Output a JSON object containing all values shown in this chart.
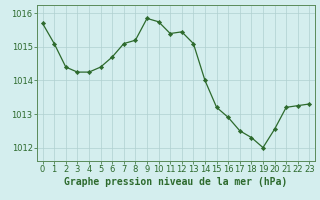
{
  "x": [
    0,
    1,
    2,
    3,
    4,
    5,
    6,
    7,
    8,
    9,
    10,
    11,
    12,
    13,
    14,
    15,
    16,
    17,
    18,
    19,
    20,
    21,
    22,
    23
  ],
  "y": [
    1015.7,
    1015.1,
    1014.4,
    1014.25,
    1014.25,
    1014.4,
    1014.7,
    1015.1,
    1015.2,
    1015.85,
    1015.75,
    1015.4,
    1015.45,
    1015.1,
    1014.0,
    1013.2,
    1012.9,
    1012.5,
    1012.3,
    1012.0,
    1012.55,
    1013.2,
    1013.25,
    1013.3
  ],
  "line_color": "#2d6a2d",
  "marker": "D",
  "marker_size": 2.2,
  "background_color": "#d4eeee",
  "grid_color_major": "#b0d0d0",
  "grid_color_minor": "#c8e4e4",
  "ylabel_ticks": [
    1012,
    1013,
    1014,
    1015,
    1016
  ],
  "xlabel_label": "Graphe pression niveau de la mer (hPa)",
  "ylim": [
    1011.6,
    1016.25
  ],
  "xlim": [
    -0.5,
    23.5
  ],
  "tick_color": "#2d6a2d",
  "label_color": "#2d6a2d",
  "spine_color": "#5a8a5a",
  "label_fontsize": 7.0,
  "tick_fontsize": 6.0,
  "linewidth": 0.9
}
